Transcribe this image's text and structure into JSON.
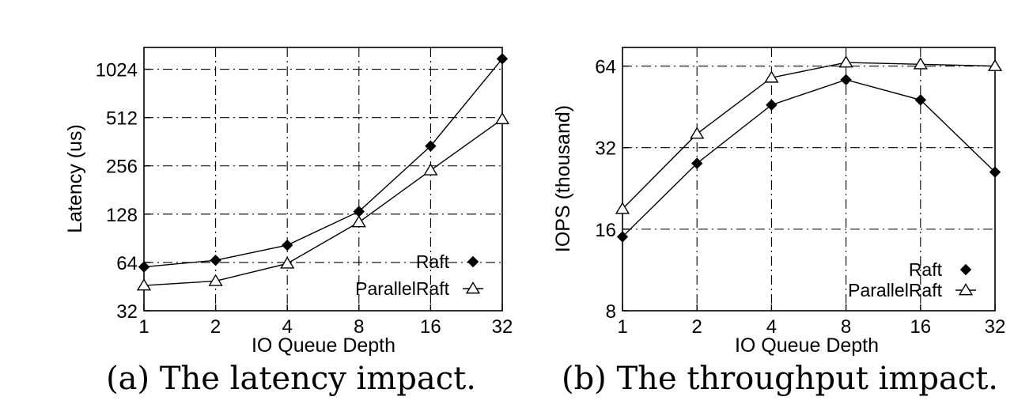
{
  "chart_data": [
    {
      "type": "line",
      "caption": "(a) The latency impact.",
      "xlabel": "IO Queue Depth",
      "ylabel": "Latency (us)",
      "categories": [
        "1",
        "2",
        "4",
        "8",
        "16",
        "32"
      ],
      "x": [
        1,
        2,
        4,
        8,
        16,
        32
      ],
      "xscale": "log2",
      "yscale": "log2",
      "ylim": [
        32,
        1400
      ],
      "yticks": [
        32,
        64,
        128,
        256,
        512,
        1024
      ],
      "ytick_labels": [
        "32",
        "64",
        "128",
        "256",
        "512",
        "1024"
      ],
      "grid": true,
      "legend_position": "bottom-right",
      "series": [
        {
          "name": "Raft",
          "marker": "diamond",
          "values": [
            60,
            66,
            82,
            133,
            340,
            1190
          ]
        },
        {
          "name": "ParallelRaft",
          "marker": "triangle",
          "values": [
            46,
            49,
            63,
            114,
            240,
            500
          ]
        }
      ]
    },
    {
      "type": "line",
      "caption": "(b) The throughput impact.",
      "xlabel": "IO Queue Depth",
      "ylabel": "IOPS (thousand)",
      "categories": [
        "1",
        "2",
        "4",
        "8",
        "16",
        "32"
      ],
      "x": [
        1,
        2,
        4,
        8,
        16,
        32
      ],
      "xscale": "log2",
      "yscale": "log2",
      "ylim": [
        8,
        75
      ],
      "yticks": [
        8,
        16,
        32,
        64
      ],
      "ytick_labels": [
        "8",
        "16",
        "32",
        "64"
      ],
      "grid": true,
      "legend_position": "bottom-right",
      "series": [
        {
          "name": "Raft",
          "marker": "diamond",
          "values": [
            15,
            28,
            46,
            57,
            48,
            26
          ]
        },
        {
          "name": "ParallelRaft",
          "marker": "triangle",
          "values": [
            19,
            36,
            58,
            66,
            65,
            64
          ]
        }
      ]
    }
  ]
}
